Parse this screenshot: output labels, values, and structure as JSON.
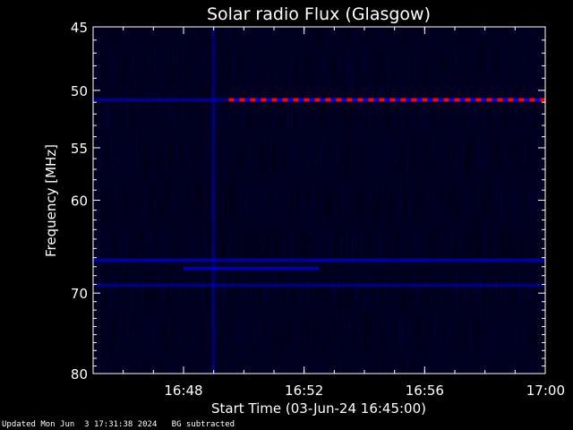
{
  "chart_data": {
    "type": "heatmap",
    "title": "Solar radio Flux (Glasgow)",
    "xlabel": "Start Time (03-Jun-24 16:45:00)",
    "ylabel": "Frequency [MHz]",
    "x_unit": "time",
    "xlim": [
      "16:45:00",
      "17:00:00"
    ],
    "x_ticks": [
      "16:48",
      "16:52",
      "16:56",
      "17:00"
    ],
    "ylim": [
      45,
      80
    ],
    "y_reversed": true,
    "y_scale": "log",
    "y_ticks": [
      45,
      50,
      55,
      60,
      70,
      80
    ],
    "colormap": [
      "#000010",
      "#0000ff",
      "#ff0000"
    ],
    "features": [
      {
        "kind": "broadband_burst",
        "time": "16:49:00",
        "freq_range": [
          45,
          80
        ],
        "intensity": 0.35
      },
      {
        "kind": "band",
        "freq": 50.8,
        "time_range": [
          "16:45:00",
          "16:49:30"
        ],
        "intensity": 0.45
      },
      {
        "kind": "band",
        "freq": 50.8,
        "time_range": [
          "16:49:30",
          "17:00:00"
        ],
        "intensity": 1.0
      },
      {
        "kind": "band",
        "freq": 66.3,
        "time_range": [
          "16:45:00",
          "17:00:00"
        ],
        "intensity": 0.55
      },
      {
        "kind": "band",
        "freq": 67.2,
        "time_range": [
          "16:48:00",
          "16:52:30"
        ],
        "intensity": 0.6
      },
      {
        "kind": "band",
        "freq": 69.1,
        "time_range": [
          "16:45:00",
          "17:00:00"
        ],
        "intensity": 0.4
      }
    ]
  },
  "footer": {
    "updated": "Updated Mon Jun  3 17:31:38 2024",
    "note": "BG subtracted"
  }
}
